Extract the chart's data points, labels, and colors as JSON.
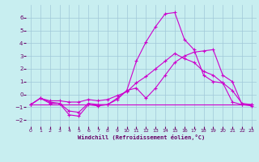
{
  "xlabel": "Windchill (Refroidissement éolien,°C)",
  "background_color": "#c8eef0",
  "grid_color": "#a0c8d8",
  "line_color": "#cc00cc",
  "xlim": [
    -0.5,
    23.5
  ],
  "ylim": [
    -2.5,
    7.0
  ],
  "yticks": [
    -2,
    -1,
    0,
    1,
    2,
    3,
    4,
    5,
    6
  ],
  "xticks": [
    0,
    1,
    2,
    3,
    4,
    5,
    6,
    7,
    8,
    9,
    10,
    11,
    12,
    13,
    14,
    15,
    16,
    17,
    18,
    19,
    20,
    21,
    22,
    23
  ],
  "line1_x": [
    0,
    1,
    2,
    3,
    4,
    5,
    6,
    7,
    8,
    9,
    10,
    11,
    12,
    13,
    14,
    15,
    16,
    17,
    18,
    19,
    20,
    21,
    22,
    23
  ],
  "line1_y": [
    -0.8,
    -0.3,
    -0.7,
    -0.7,
    -1.6,
    -1.7,
    -0.8,
    -0.9,
    -0.8,
    -0.4,
    0.3,
    2.6,
    4.1,
    5.3,
    6.3,
    6.4,
    4.3,
    3.5,
    1.5,
    1.0,
    0.9,
    -0.6,
    -0.8,
    -0.8
  ],
  "line2_x": [
    0,
    1,
    2,
    3,
    4,
    5,
    6,
    7,
    8,
    9,
    10,
    11,
    12,
    13,
    14,
    15,
    16,
    17,
    18,
    19,
    20,
    21,
    22,
    23
  ],
  "line2_y": [
    -0.8,
    -0.3,
    -0.6,
    -0.7,
    -1.3,
    -1.4,
    -0.7,
    -0.8,
    -0.8,
    -0.3,
    0.3,
    0.5,
    -0.3,
    0.5,
    1.5,
    2.5,
    3.0,
    3.3,
    3.4,
    3.5,
    1.5,
    1.0,
    -0.8,
    -0.9
  ],
  "line3_x": [
    0,
    23
  ],
  "line3_y": [
    -0.8,
    -0.8
  ],
  "line4_x": [
    0,
    1,
    2,
    3,
    4,
    5,
    6,
    7,
    8,
    9,
    10,
    11,
    12,
    13,
    14,
    15,
    16,
    17,
    18,
    19,
    20,
    21,
    22,
    23
  ],
  "line4_y": [
    -0.8,
    -0.3,
    -0.5,
    -0.5,
    -0.6,
    -0.6,
    -0.4,
    -0.5,
    -0.4,
    -0.1,
    0.2,
    0.9,
    1.4,
    2.0,
    2.6,
    3.2,
    2.8,
    2.5,
    1.8,
    1.5,
    0.9,
    0.3,
    -0.7,
    -0.8
  ]
}
